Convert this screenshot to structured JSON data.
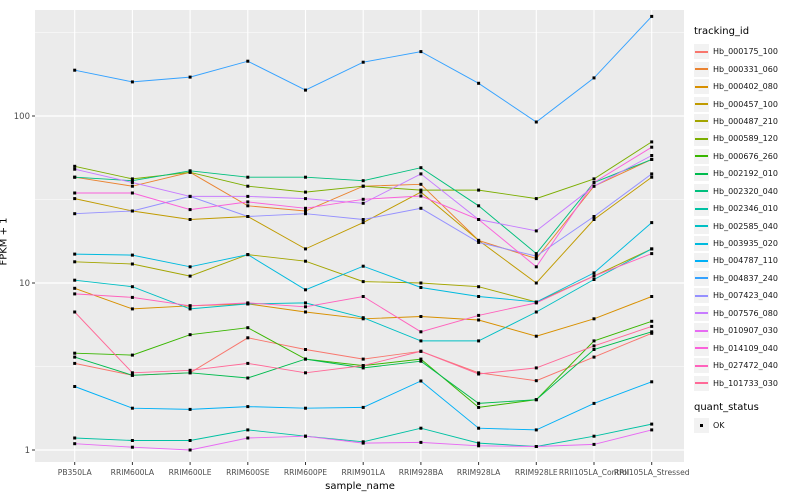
{
  "chart_data": {
    "type": "line",
    "xlabel": "sample_name",
    "ylabel": "FPKM + 1",
    "y_scale": "log10",
    "y_tick_labels": [
      "1",
      "10",
      "100"
    ],
    "y_tick_values": [
      1,
      10,
      100
    ],
    "y_minor_values": [
      3.162,
      31.62,
      316.2
    ],
    "ylim": [
      1,
      450
    ],
    "legend_position": "right",
    "grid": "on",
    "point_shape": "filled-square-black",
    "categories": [
      "PB350LA",
      "RRIM600LA",
      "RRIM600LE",
      "RRIM600SE",
      "RRIM600PE",
      "RRIM901LA",
      "RRIM928BA",
      "RRIM928LA",
      "RRIM928LE",
      "RRII105LA_Control",
      "RRII105LA_Stressed"
    ],
    "legend_title": "tracking_id",
    "quant_legend": {
      "title": "quant_status",
      "entries": [
        "OK"
      ]
    },
    "series": [
      {
        "name": "Hb_000175_100",
        "color": "#F8766D",
        "values": [
          3.3,
          2.8,
          2.9,
          4.7,
          4.0,
          3.5,
          3.9,
          2.9,
          2.6,
          3.6,
          5.0
        ]
      },
      {
        "name": "Hb_000331_060",
        "color": "#EA8331",
        "values": [
          43,
          38,
          46,
          29,
          27,
          38,
          39,
          18,
          14,
          38,
          55
        ]
      },
      {
        "name": "Hb_000402_080",
        "color": "#D89000",
        "values": [
          9.3,
          7.0,
          7.3,
          7.5,
          6.7,
          6.1,
          6.3,
          6.0,
          4.8,
          6.1,
          8.3
        ]
      },
      {
        "name": "Hb_000457_100",
        "color": "#C09B00",
        "values": [
          32,
          27,
          24,
          25,
          16,
          23,
          35,
          18,
          10,
          24,
          43
        ]
      },
      {
        "name": "Hb_000487_210",
        "color": "#A3A500",
        "values": [
          13.4,
          13.0,
          11.0,
          14.8,
          13.5,
          10.2,
          10.0,
          9.5,
          7.7,
          11.0,
          16
        ]
      },
      {
        "name": "Hb_000589_120",
        "color": "#7CAE00",
        "values": [
          50,
          42,
          46,
          38,
          35,
          38,
          36,
          36,
          32,
          42,
          70
        ]
      },
      {
        "name": "Hb_000676_260",
        "color": "#39B600",
        "values": [
          3.8,
          3.7,
          4.9,
          5.4,
          3.5,
          3.2,
          3.5,
          1.8,
          2.0,
          4.5,
          5.9
        ]
      },
      {
        "name": "Hb_002192_010",
        "color": "#00BB4E",
        "values": [
          3.6,
          2.8,
          2.9,
          2.7,
          3.5,
          3.1,
          3.4,
          1.9,
          2.0,
          4.0,
          5.1
        ]
      },
      {
        "name": "Hb_002320_040",
        "color": "#00BF7D",
        "values": [
          43,
          41,
          47,
          43,
          43,
          41,
          49,
          29,
          15,
          40,
          55
        ]
      },
      {
        "name": "Hb_002346_010",
        "color": "#00C1A3",
        "values": [
          1.18,
          1.14,
          1.14,
          1.32,
          1.21,
          1.12,
          1.35,
          1.1,
          1.05,
          1.21,
          1.43
        ]
      },
      {
        "name": "Hb_002585_040",
        "color": "#00BFC4",
        "values": [
          10.4,
          9.5,
          7.0,
          7.5,
          7.6,
          6.2,
          4.5,
          4.5,
          6.7,
          10.5,
          16
        ]
      },
      {
        "name": "Hb_003935_020",
        "color": "#00BADE",
        "values": [
          14.9,
          14.7,
          12.5,
          14.8,
          9.1,
          12.6,
          9.4,
          8.3,
          7.7,
          11.5,
          23
        ]
      },
      {
        "name": "Hb_004787_110",
        "color": "#00B0F6",
        "values": [
          2.4,
          1.78,
          1.75,
          1.82,
          1.78,
          1.8,
          2.59,
          1.35,
          1.32,
          1.9,
          2.56
        ]
      },
      {
        "name": "Hb_004837_240",
        "color": "#35A2FF",
        "values": [
          188,
          160,
          171,
          213,
          143,
          210,
          243,
          157,
          92,
          169,
          395
        ]
      },
      {
        "name": "Hb_007423_040",
        "color": "#9590FF",
        "values": [
          26,
          27,
          33,
          25,
          26,
          24,
          28,
          17.5,
          14.5,
          25,
          45
        ]
      },
      {
        "name": "Hb_007576_080",
        "color": "#C77CFF",
        "values": [
          48,
          40,
          33,
          33,
          32,
          30,
          45,
          24,
          20.5,
          38,
          58
        ]
      },
      {
        "name": "Hb_010907_030",
        "color": "#E76BF3",
        "values": [
          1.09,
          1.04,
          1.0,
          1.18,
          1.21,
          1.1,
          1.11,
          1.06,
          1.05,
          1.08,
          1.32
        ]
      },
      {
        "name": "Hb_014109_040",
        "color": "#FA62DB",
        "values": [
          34.6,
          34.6,
          27.5,
          30.6,
          28,
          31.7,
          33.2,
          24,
          12.5,
          40,
          65
        ]
      },
      {
        "name": "Hb_027472_040",
        "color": "#FF62BC",
        "values": [
          8.6,
          8.2,
          7.3,
          7.6,
          7.2,
          8.3,
          5.1,
          6.4,
          7.6,
          11,
          15
        ]
      },
      {
        "name": "Hb_101733_030",
        "color": "#FF6A98",
        "values": [
          6.7,
          2.9,
          3.0,
          3.3,
          2.9,
          3.2,
          3.9,
          2.85,
          3.1,
          4.2,
          5.5
        ]
      }
    ]
  },
  "style": {
    "panel_bg": "#EBEBEB",
    "grid_color": "#FFFFFF",
    "axis_text_color": "#4D4D4D",
    "tick_color": "#333333",
    "point_color": "#000000",
    "legend_key_bg": "#F2F2F2"
  }
}
